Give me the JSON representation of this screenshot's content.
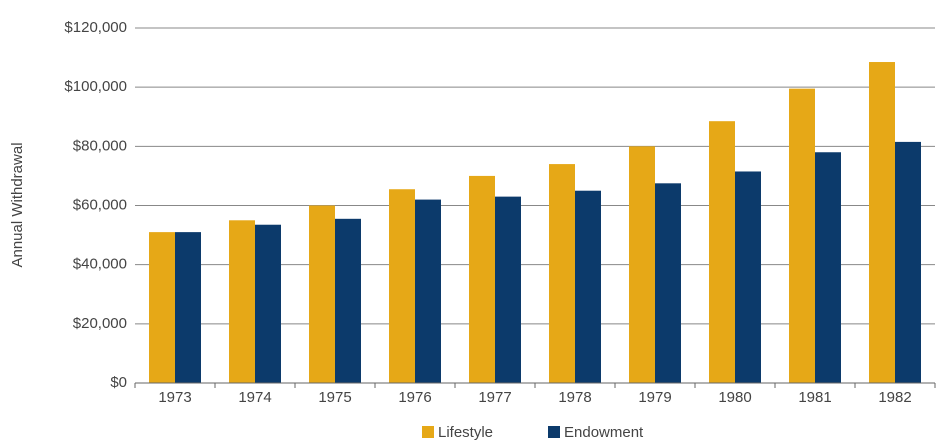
{
  "chart_data": {
    "type": "bar",
    "y_label": "Annual Withdrawal",
    "categories": [
      "1973",
      "1974",
      "1975",
      "1976",
      "1977",
      "1978",
      "1979",
      "1980",
      "1981",
      "1982"
    ],
    "series": [
      {
        "name": "Lifestyle",
        "color": "#e6a817",
        "values": [
          51000,
          55000,
          60000,
          65500,
          70000,
          74000,
          80000,
          88500,
          99500,
          108500
        ]
      },
      {
        "name": "Endowment",
        "color": "#0c3a6b",
        "values": [
          51000,
          53500,
          55500,
          62000,
          63000,
          65000,
          67500,
          71500,
          78000,
          81500
        ]
      }
    ],
    "ylim": [
      0,
      120000
    ],
    "yticks": [
      {
        "value": 0,
        "label": "$0"
      },
      {
        "value": 20000,
        "label": "$20,000"
      },
      {
        "value": 40000,
        "label": "$40,000"
      },
      {
        "value": 60000,
        "label": "$60,000"
      },
      {
        "value": 80000,
        "label": "$80,000"
      },
      {
        "value": 100000,
        "label": "$100,000"
      },
      {
        "value": 120000,
        "label": "$120,000"
      }
    ],
    "grid": true,
    "legend": "bottom"
  }
}
